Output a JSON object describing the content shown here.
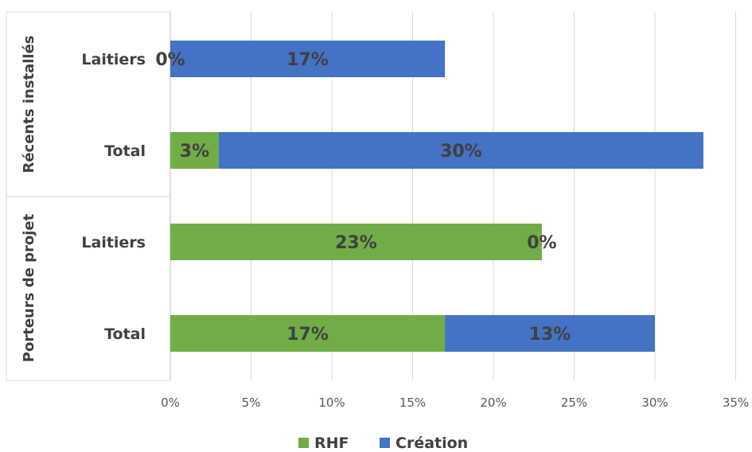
{
  "chart_data": {
    "type": "bar",
    "orientation": "horizontal",
    "stacked": true,
    "title": "",
    "xlabel": "",
    "ylabel": "",
    "xlim": [
      0,
      35
    ],
    "x_ticks": [
      "0%",
      "5%",
      "10%",
      "15%",
      "20%",
      "25%",
      "30%",
      "35%"
    ],
    "grid": "vertical",
    "legend_position": "bottom",
    "groups": [
      {
        "label": "Récents installés",
        "categories": [
          "Laitiers",
          "Total"
        ]
      },
      {
        "label": "Porteurs de projet",
        "categories": [
          "Laitiers",
          "Total"
        ]
      }
    ],
    "categories": [
      "Laitiers",
      "Total",
      "Laitiers",
      "Total"
    ],
    "series": [
      {
        "name": "RHF",
        "color": "#70AD47",
        "values": [
          0,
          3,
          23,
          17
        ],
        "labels": [
          "0%",
          "3%",
          "23%",
          "17%"
        ]
      },
      {
        "name": "Création",
        "color": "#4472C4",
        "values": [
          17,
          30,
          0,
          13
        ],
        "labels": [
          "17%",
          "30%",
          "0%",
          "13%"
        ]
      }
    ]
  }
}
